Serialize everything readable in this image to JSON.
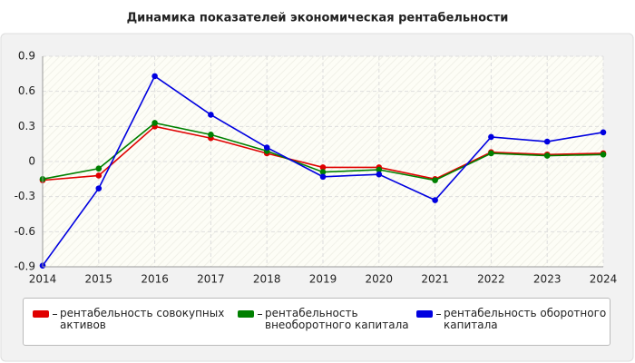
{
  "chart_data": {
    "type": "line",
    "title": "Динамика показателей экономическая рентабельности",
    "x": [
      2014,
      2015,
      2016,
      2017,
      2018,
      2019,
      2020,
      2021,
      2022,
      2023,
      2024
    ],
    "xlim": [
      2014,
      2024
    ],
    "xticks": [
      2014,
      2015,
      2016,
      2017,
      2018,
      2019,
      2020,
      2021,
      2022,
      2023,
      2024
    ],
    "ylim": [
      -0.9,
      0.9
    ],
    "yticks": [
      0.9,
      0.6,
      0.3,
      0,
      -0.3,
      -0.6,
      -0.9
    ],
    "grid": true,
    "series": [
      {
        "name": "рентабельность совокупных активов",
        "color": "#e00000",
        "values": [
          -0.16,
          -0.12,
          0.3,
          0.2,
          0.07,
          -0.05,
          -0.05,
          -0.15,
          0.08,
          0.06,
          0.07
        ]
      },
      {
        "name": "рентабельность внеоборотного капитала",
        "color": "#008000",
        "values": [
          -0.15,
          -0.06,
          0.33,
          0.23,
          0.09,
          -0.09,
          -0.07,
          -0.16,
          0.07,
          0.05,
          0.06
        ]
      },
      {
        "name": "рентабельность оборотного капитала",
        "color": "#0000e0",
        "values": [
          -0.89,
          -0.23,
          0.73,
          0.4,
          0.12,
          -0.13,
          -0.11,
          -0.33,
          0.21,
          0.17,
          0.25
        ]
      }
    ]
  }
}
